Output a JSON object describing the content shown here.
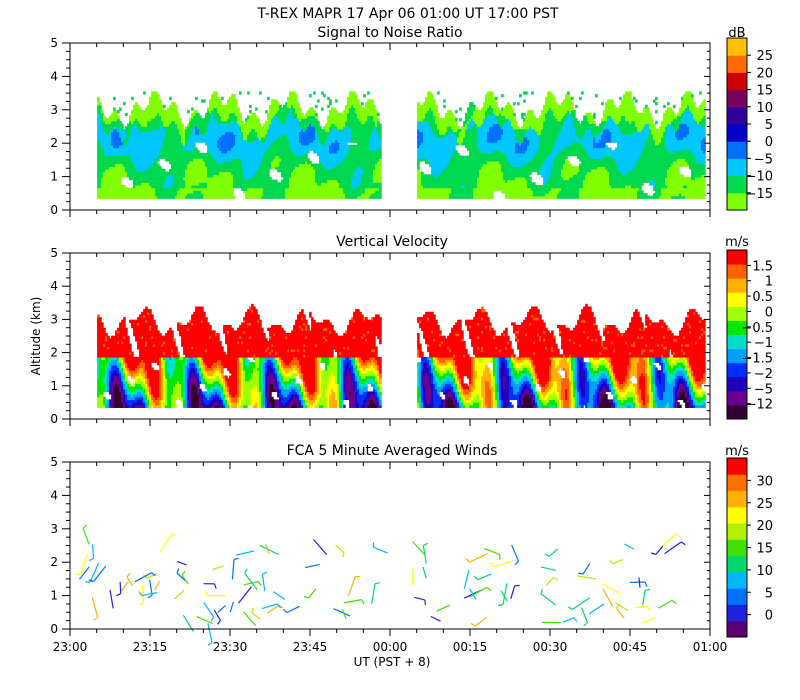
{
  "page_title": "T-REX   MAPR 17 Apr 06   01:00 UT   17:00   PST",
  "xaxis": {
    "label": "UT  (PST + 8)",
    "ticks": [
      "23:00",
      "23:15",
      "23:30",
      "23:45",
      "00:00",
      "00:15",
      "00:30",
      "00:45",
      "01:00"
    ],
    "range_minutes": [
      0,
      120
    ]
  },
  "ylabel": "Altitude (km)",
  "colors": {
    "snr": [
      "#80ff00",
      "#00d850",
      "#00c8ff",
      "#0070ff",
      "#0000c8",
      "#30009a",
      "#7a0060",
      "#d00000",
      "#ff6a00",
      "#ffc000"
    ],
    "vv": [
      "#320032",
      "#6a0090",
      "#2000c0",
      "#0030ff",
      "#00a0ff",
      "#00e0c8",
      "#00e800",
      "#a0ff00",
      "#ffff00",
      "#ffb000",
      "#ff6000",
      "#ff0000"
    ],
    "wind": [
      "#5a0070",
      "#2020e0",
      "#0070ff",
      "#00b8ff",
      "#00d870",
      "#40e000",
      "#b0f000",
      "#ffff00",
      "#ffb000",
      "#ff7000",
      "#ff0000"
    ]
  },
  "chart_data": [
    {
      "type": "heatmap",
      "title": "Signal to Noise Ratio",
      "colorbar_unit": "dB",
      "colorbar_ticks": [
        "25",
        "20",
        "15",
        "10",
        "5",
        "0",
        "−5",
        "−10",
        "−15"
      ],
      "colorbar_values": [
        25,
        20,
        15,
        10,
        5,
        0,
        -5,
        -10,
        -15
      ],
      "yticks": [
        "0",
        "1",
        "2",
        "3",
        "4",
        "5"
      ],
      "ylim": [
        0,
        5
      ],
      "xlim_minutes": [
        0,
        120
      ],
      "data_gap_minutes": [
        58,
        65
      ],
      "data_altitude_range_km": [
        0.35,
        3.5
      ]
    },
    {
      "type": "heatmap",
      "title": "Vertical Velocity",
      "colorbar_unit": "m/s",
      "colorbar_ticks": [
        "1.5",
        "1",
        "0.5",
        "0",
        "−0.5",
        "−1",
        "−1.5",
        "−2",
        "−5",
        "−12"
      ],
      "colorbar_values": [
        1.5,
        1,
        0.5,
        0,
        -0.5,
        -1,
        -1.5,
        -2,
        -5,
        -12
      ],
      "yticks": [
        "0",
        "1",
        "2",
        "3",
        "4",
        "5"
      ],
      "ylim": [
        0,
        5
      ],
      "xlim_minutes": [
        0,
        120
      ],
      "data_gap_minutes": [
        58,
        65
      ],
      "data_altitude_range_km": [
        0.35,
        3.4
      ]
    },
    {
      "type": "scatter",
      "title": "FCA 5 Minute Averaged Winds",
      "colorbar_unit": "m/s",
      "colorbar_ticks": [
        "30",
        "25",
        "20",
        "15",
        "10",
        "5",
        "0"
      ],
      "colorbar_values": [
        30,
        25,
        20,
        15,
        10,
        5,
        0
      ],
      "yticks": [
        "0",
        "1",
        "2",
        "3",
        "4",
        "5"
      ],
      "ylim": [
        0,
        5
      ],
      "xlim_minutes": [
        0,
        120
      ],
      "note": "wind barbs"
    }
  ]
}
